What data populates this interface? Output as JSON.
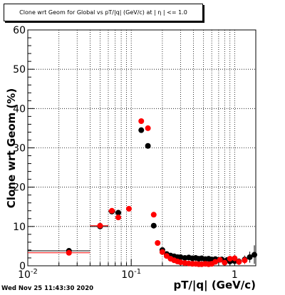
{
  "title": "Clone wrt Geom for Global vs pT/|q| (GeV/c) at | η | <= 1.0",
  "footer": "Wed Nov 25 11:43:30 2020",
  "colors": {
    "series_black": "#000000",
    "series_red": "#ff0000"
  },
  "chart_data": {
    "type": "scatter",
    "title": "Clone wrt Geom for Global vs pT/|q| (GeV/c) at | η | <= 1.0",
    "xlabel": "pT/|q| (GeV/c)",
    "ylabel": "Clone wrt Geom (%)",
    "xscale": "log",
    "xlim": [
      0.01,
      1.6
    ],
    "ylim": [
      0,
      60
    ],
    "grid": true,
    "x_tick_labels": [
      "10^-2",
      "10^-1",
      "1"
    ],
    "y_tick_labels": [
      "0",
      "10",
      "20",
      "30",
      "40",
      "50",
      "60"
    ],
    "series": [
      {
        "color": "#000000",
        "points": [
          {
            "x": 0.025,
            "y": 3.8,
            "xlo": 0.01,
            "xhi": 0.04,
            "ylo": 3.5,
            "yhi": 4.1
          },
          {
            "x": 0.05,
            "y": 10.0,
            "xlo": 0.04,
            "xhi": 0.06,
            "ylo": 9.5,
            "yhi": 10.5
          },
          {
            "x": 0.065,
            "y": 13.8,
            "xlo": 0.06,
            "xhi": 0.07,
            "ylo": 13.2,
            "yhi": 14.4
          },
          {
            "x": 0.075,
            "y": 13.5,
            "xlo": 0.07,
            "xhi": 0.08,
            "ylo": 12.9,
            "yhi": 14.1
          },
          {
            "x": 0.125,
            "y": 34.5,
            "xlo": 0.12,
            "xhi": 0.13,
            "ylo": 34.0,
            "yhi": 35.0
          },
          {
            "x": 0.145,
            "y": 30.5,
            "xlo": 0.14,
            "xhi": 0.15,
            "ylo": 30.0,
            "yhi": 31.0
          },
          {
            "x": 0.165,
            "y": 10.2,
            "xlo": 0.16,
            "xhi": 0.17,
            "ylo": 9.8,
            "yhi": 10.6
          },
          {
            "x": 0.2,
            "y": 4.0,
            "ylo": 3.5,
            "yhi": 4.5
          },
          {
            "x": 0.22,
            "y": 3.0,
            "ylo": 2.5,
            "yhi": 3.5
          },
          {
            "x": 0.24,
            "y": 2.6,
            "ylo": 2.1,
            "yhi": 3.1
          },
          {
            "x": 0.26,
            "y": 2.4,
            "ylo": 1.9,
            "yhi": 2.9
          },
          {
            "x": 0.28,
            "y": 2.2,
            "ylo": 1.7,
            "yhi": 2.7
          },
          {
            "x": 0.3,
            "y": 2.2,
            "ylo": 1.7,
            "yhi": 2.7
          },
          {
            "x": 0.33,
            "y": 2.0,
            "ylo": 1.5,
            "yhi": 2.5
          },
          {
            "x": 0.36,
            "y": 2.1,
            "ylo": 1.6,
            "yhi": 2.6
          },
          {
            "x": 0.39,
            "y": 1.9,
            "ylo": 1.4,
            "yhi": 2.4
          },
          {
            "x": 0.42,
            "y": 2.0,
            "ylo": 1.5,
            "yhi": 2.5
          },
          {
            "x": 0.45,
            "y": 1.8,
            "ylo": 1.3,
            "yhi": 2.3
          },
          {
            "x": 0.48,
            "y": 1.9,
            "ylo": 1.4,
            "yhi": 2.4
          },
          {
            "x": 0.52,
            "y": 1.7,
            "ylo": 1.2,
            "yhi": 2.2
          },
          {
            "x": 0.56,
            "y": 1.8,
            "ylo": 1.3,
            "yhi": 2.3
          },
          {
            "x": 0.6,
            "y": 1.6,
            "ylo": 1.1,
            "yhi": 2.1
          },
          {
            "x": 0.65,
            "y": 1.7,
            "ylo": 1.2,
            "yhi": 2.2
          },
          {
            "x": 0.7,
            "y": 1.5,
            "ylo": 1.0,
            "yhi": 2.0
          },
          {
            "x": 0.75,
            "y": 1.6,
            "ylo": 1.0,
            "yhi": 2.2
          },
          {
            "x": 0.8,
            "y": 1.2,
            "ylo": 0.6,
            "yhi": 1.8
          },
          {
            "x": 0.85,
            "y": 1.5,
            "ylo": 0.9,
            "yhi": 2.1
          },
          {
            "x": 0.9,
            "y": 1.1,
            "ylo": 0.5,
            "yhi": 1.7
          },
          {
            "x": 0.95,
            "y": 1.4,
            "ylo": 0.8,
            "yhi": 2.0
          },
          {
            "x": 1.0,
            "y": 1.2,
            "ylo": 0.5,
            "yhi": 1.9
          },
          {
            "x": 1.1,
            "y": 1.1,
            "ylo": 0.3,
            "yhi": 1.9
          },
          {
            "x": 1.25,
            "y": 1.6,
            "ylo": 0.6,
            "yhi": 2.6
          },
          {
            "x": 1.4,
            "y": 2.2,
            "ylo": 0.8,
            "yhi": 3.6
          },
          {
            "x": 1.55,
            "y": 2.8,
            "ylo": 0.5,
            "yhi": 5.2
          }
        ]
      },
      {
        "color": "#ff0000",
        "points": [
          {
            "x": 0.025,
            "y": 3.3,
            "xlo": 0.01,
            "xhi": 0.04,
            "ylo": 3.0,
            "yhi": 3.6
          },
          {
            "x": 0.05,
            "y": 10.2,
            "xlo": 0.04,
            "xhi": 0.06,
            "ylo": 9.7,
            "yhi": 10.7
          },
          {
            "x": 0.065,
            "y": 14.0,
            "xlo": 0.06,
            "xhi": 0.07,
            "ylo": 13.4,
            "yhi": 14.6
          },
          {
            "x": 0.075,
            "y": 12.3,
            "xlo": 0.07,
            "xhi": 0.08,
            "ylo": 11.7,
            "yhi": 12.9
          },
          {
            "x": 0.095,
            "y": 14.5,
            "xlo": 0.09,
            "xhi": 0.1,
            "ylo": 13.9,
            "yhi": 15.1
          },
          {
            "x": 0.125,
            "y": 36.8,
            "xlo": 0.12,
            "xhi": 0.13,
            "ylo": 36.3,
            "yhi": 37.3
          },
          {
            "x": 0.145,
            "y": 35.0,
            "xlo": 0.14,
            "xhi": 0.15,
            "ylo": 34.5,
            "yhi": 35.5
          },
          {
            "x": 0.165,
            "y": 13.0,
            "xlo": 0.16,
            "xhi": 0.17,
            "ylo": 12.6,
            "yhi": 13.4
          },
          {
            "x": 0.18,
            "y": 5.8,
            "ylo": 5.4,
            "yhi": 6.2
          },
          {
            "x": 0.2,
            "y": 3.5,
            "ylo": 3.1,
            "yhi": 3.9
          },
          {
            "x": 0.22,
            "y": 2.5,
            "ylo": 2.1,
            "yhi": 2.9
          },
          {
            "x": 0.24,
            "y": 1.8,
            "ylo": 1.4,
            "yhi": 2.2
          },
          {
            "x": 0.26,
            "y": 1.4,
            "ylo": 1.0,
            "yhi": 1.8
          },
          {
            "x": 0.28,
            "y": 1.1,
            "ylo": 0.7,
            "yhi": 1.5
          },
          {
            "x": 0.3,
            "y": 0.9,
            "ylo": 0.5,
            "yhi": 1.3
          },
          {
            "x": 0.33,
            "y": 0.7,
            "ylo": 0.3,
            "yhi": 1.1
          },
          {
            "x": 0.36,
            "y": 0.6,
            "ylo": 0.2,
            "yhi": 1.0
          },
          {
            "x": 0.39,
            "y": 0.5,
            "ylo": 0.1,
            "yhi": 0.9
          },
          {
            "x": 0.42,
            "y": 0.5,
            "ylo": 0.1,
            "yhi": 0.9
          },
          {
            "x": 0.45,
            "y": 0.4,
            "ylo": 0.0,
            "yhi": 0.8
          },
          {
            "x": 0.48,
            "y": 0.4,
            "ylo": 0.0,
            "yhi": 0.8
          },
          {
            "x": 0.52,
            "y": 0.5,
            "ylo": 0.1,
            "yhi": 0.9
          },
          {
            "x": 0.56,
            "y": 0.4,
            "ylo": 0.0,
            "yhi": 0.8
          },
          {
            "x": 0.6,
            "y": 0.5,
            "ylo": 0.1,
            "yhi": 0.9
          },
          {
            "x": 0.65,
            "y": 1.0,
            "ylo": 0.5,
            "yhi": 1.5
          },
          {
            "x": 0.72,
            "y": 1.5,
            "ylo": 0.9,
            "yhi": 2.1
          },
          {
            "x": 0.8,
            "y": 0.8,
            "ylo": 0.2,
            "yhi": 1.4
          },
          {
            "x": 0.9,
            "y": 1.8,
            "ylo": 1.1,
            "yhi": 2.5
          },
          {
            "x": 1.0,
            "y": 1.9,
            "ylo": 1.1,
            "yhi": 2.7
          },
          {
            "x": 1.1,
            "y": 1.0,
            "ylo": 0.2,
            "yhi": 1.8
          },
          {
            "x": 1.25,
            "y": 1.4,
            "ylo": 0.4,
            "yhi": 2.4
          }
        ]
      }
    ]
  }
}
